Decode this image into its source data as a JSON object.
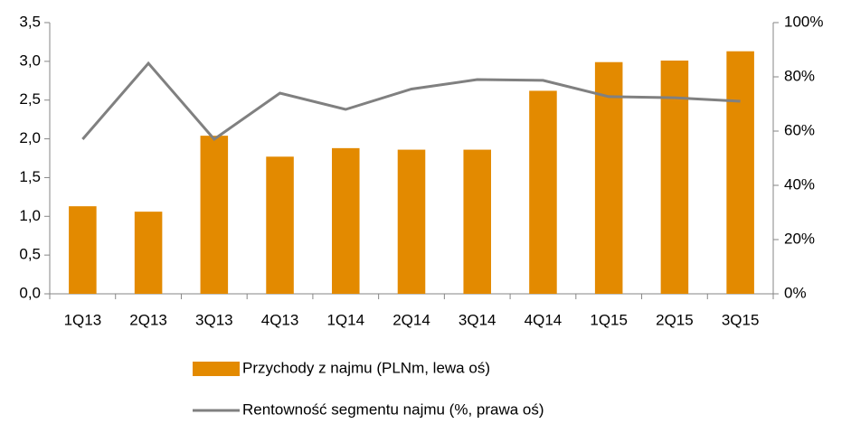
{
  "chart_data": {
    "type": "bar_line",
    "categories": [
      "1Q13",
      "2Q13",
      "3Q13",
      "4Q13",
      "1Q14",
      "2Q14",
      "3Q14",
      "4Q14",
      "1Q15",
      "2Q15",
      "3Q15"
    ],
    "series": [
      {
        "name": "Przychody z najmu (PLNm, lewa oś)",
        "type": "bar",
        "color": "#e38a00",
        "values": [
          1.13,
          1.06,
          2.04,
          1.77,
          1.88,
          1.86,
          1.86,
          2.62,
          2.99,
          3.01,
          3.13
        ]
      },
      {
        "name": "Rentowność segmentu najmu (%, prawa oś)",
        "type": "line",
        "axis": "y2",
        "color": "#808080",
        "values": [
          57,
          85,
          57,
          74,
          68,
          75.5,
          79,
          78.7,
          72.7,
          72.3,
          71
        ]
      }
    ],
    "ylim": [
      0,
      3.5
    ],
    "yticks": [
      {
        "value": 0,
        "label": "0,0"
      },
      {
        "value": 0.5,
        "label": "0,5"
      },
      {
        "value": 1,
        "label": "1,0"
      },
      {
        "value": 1.5,
        "label": "1,5"
      },
      {
        "value": 2,
        "label": "2,0"
      },
      {
        "value": 2.5,
        "label": "2,5"
      },
      {
        "value": 3,
        "label": "3,0"
      },
      {
        "value": 3.5,
        "label": "3,5"
      }
    ],
    "y2lim": [
      0,
      100
    ],
    "y2ticks": [
      {
        "value": 0,
        "label": "0%"
      },
      {
        "value": 20,
        "label": "20%"
      },
      {
        "value": 40,
        "label": "40%"
      },
      {
        "value": 60,
        "label": "60%"
      },
      {
        "value": 80,
        "label": "80%"
      },
      {
        "value": 100,
        "label": "100%"
      }
    ],
    "legend": "bottom"
  }
}
